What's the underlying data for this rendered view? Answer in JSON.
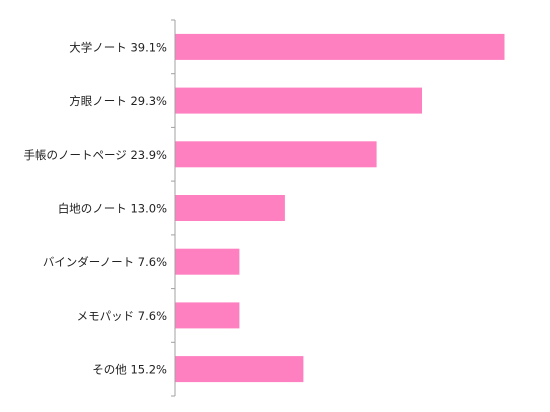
{
  "chart_data": {
    "type": "bar",
    "orientation": "horizontal",
    "title": "",
    "xlabel": "",
    "ylabel": "",
    "xlim": [
      0,
      40
    ],
    "grid": false,
    "legend": "none",
    "bar_color": "#ff80c0",
    "categories": [
      "大学ノート 39.1%",
      "方眼ノート 29.3%",
      "手帳のノートページ 23.9%",
      "白地のノート 13.0%",
      "バインダーノート 7.6%",
      "メモパッド 7.6%",
      "その他 15.2%"
    ],
    "values": [
      39.1,
      29.3,
      23.9,
      13.0,
      7.6,
      7.6,
      15.2
    ]
  }
}
